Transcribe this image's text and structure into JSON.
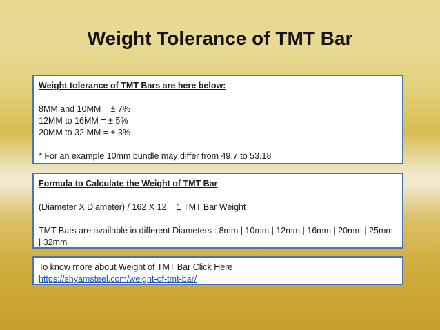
{
  "title": "Weight Tolerance of TMT Bar",
  "tolerance_box": {
    "heading": "Weight tolerance of TMT Bars are here below:",
    "lines": [
      "8MM and 10MM = ± 7%",
      "12MM to 16MM = ± 5%",
      "20MM to 32 MM = ± 3%"
    ],
    "note": "* For an example 10mm bundle may differ from 49.7 to 53.18"
  },
  "formula_box": {
    "heading": "Formula to Calculate the Weight of TMT Bar",
    "formula": "(Diameter X Diameter) / 162 X 12 = 1 TMT Bar Weight",
    "diameters": "TMT Bars are available in different Diameters : 8mm | 10mm | 12mm | 16mm | 20mm | 25mm | 32mm"
  },
  "more_box": {
    "text": "To know more about Weight of TMT Bar Click Here",
    "link": "https://shyamsteel.com/weight-of-tmt-bar/"
  }
}
